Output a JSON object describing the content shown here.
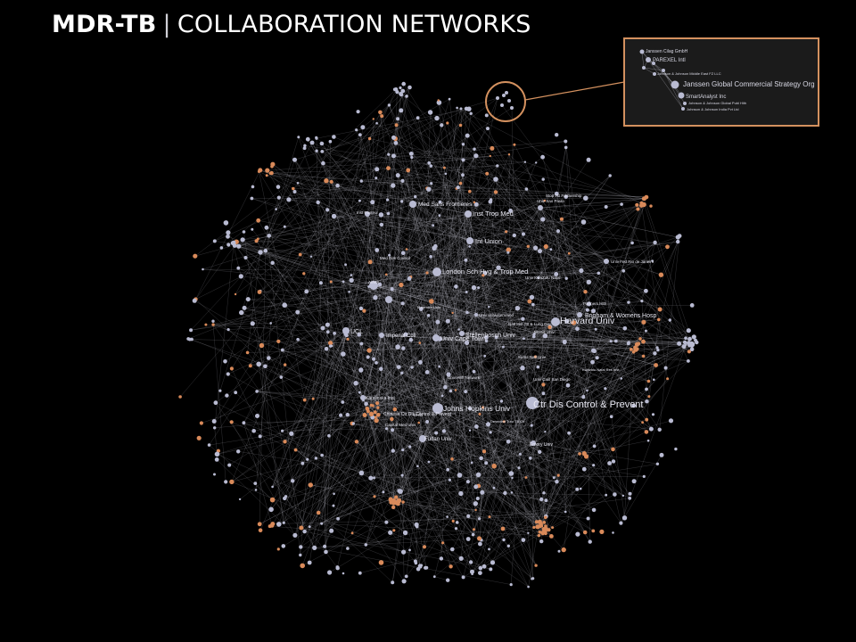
{
  "title": {
    "bold": "MDR-TB",
    "separator": "|",
    "rest": "COLLABORATION NETWORKS"
  },
  "colors": {
    "background": "#000000",
    "node_gray": "#b9bbd2",
    "node_orange": "#d98a5a",
    "edge": "#c9c9d6",
    "callout": "#d4915f",
    "inset_bg": "#1b1b1b"
  },
  "labels": {
    "ctr_dis": "Ctr Dis Control & Prevent",
    "harvard": "Harvard Univ",
    "brigham": "Brigham & Womens Hosp",
    "johns_hopkins": "Johns Hopkins Univ",
    "london_sch": "London Sch Hyg & Trop Med",
    "inst_trop": "Inst Trop Med",
    "int_union": "Int Union",
    "med_sans": "Med Sans Frontieres",
    "ucl": "UCL",
    "imperial": "Imperial Coll",
    "univ_cape": "Univ Cape Town",
    "stellenbosch": "Stellenbosch Univ",
    "tatanka": "Univ Witwatersrand",
    "natl_inst": "Natl Inst TB & Lung Dis",
    "partners": "Partners Hlth",
    "mcgill": "McGill Univ",
    "emory": "Emory Univ",
    "karolinska": "Karolinska Inst",
    "univ_calif": "Univ Calif San Diego",
    "fudan": "Fudan Univ",
    "chinese_ctr": "Chinese Ctr Dis Control & Prevent",
    "capital_med": "Capital Med Univ",
    "wu_chinese": "WHO",
    "univ_sao": "Univ Sao Paulo",
    "stop_tb": "Stop TB Partnership",
    "doc_group": "Univ Fed Rio de Janeiro",
    "uhn": "Univ KwaZulu Natal",
    "aiims": "AIIMS",
    "med_res": "Med Res Council",
    "inst_pasteur": "Inst Pasteur",
    "unitaid": "Univ Hlth Network",
    "sanofi": "Kwazulu Natal Res Inst",
    "pnu": "Seoul Natl Univ",
    "dudus": "Desmond Tutu TB Ctr",
    "makerere": "Makerere Univ"
  },
  "inset": {
    "labels": [
      "Janssen Cilag GmbH",
      "PAREXEL Intl",
      "Johnson & Johnson Middle East FZ LLC",
      "Janssen Global Commercial Strategy Org",
      "SmartAnalyst Inc",
      "Johnson & Johnson Global Publ Hlth",
      "Johnson & Johnson India Pvt Ltd"
    ]
  }
}
